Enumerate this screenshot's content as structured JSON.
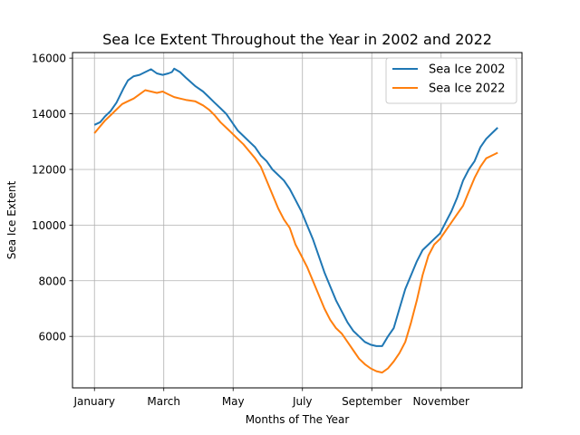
{
  "chart_data": {
    "type": "line",
    "title": "Sea Ice Extent Throughout the Year in 2002 and 2022",
    "xlabel": "Months of The Year",
    "ylabel": "Sea Ice Extent",
    "x_ticks": [
      {
        "label": "January",
        "day": 1
      },
      {
        "label": "March",
        "day": 61
      },
      {
        "label": "May",
        "day": 121
      },
      {
        "label": "July",
        "day": 181
      },
      {
        "label": "September",
        "day": 241
      },
      {
        "label": "November",
        "day": 301
      }
    ],
    "xlim": [
      -18,
      371
    ],
    "ylim": [
      4150,
      16200
    ],
    "y_ticks": [
      6000,
      8000,
      10000,
      12000,
      14000,
      16000
    ],
    "grid": true,
    "legend_position": "top-right",
    "series": [
      {
        "name": "Sea Ice 2002",
        "color": "#1f77b4",
        "points": [
          [
            1,
            13600
          ],
          [
            6,
            13700
          ],
          [
            10,
            13900
          ],
          [
            15,
            14100
          ],
          [
            20,
            14400
          ],
          [
            26,
            14900
          ],
          [
            30,
            15200
          ],
          [
            35,
            15350
          ],
          [
            40,
            15400
          ],
          [
            45,
            15500
          ],
          [
            50,
            15600
          ],
          [
            55,
            15450
          ],
          [
            60,
            15400
          ],
          [
            65,
            15450
          ],
          [
            68,
            15500
          ],
          [
            70,
            15620
          ],
          [
            75,
            15500
          ],
          [
            80,
            15300
          ],
          [
            88,
            15000
          ],
          [
            95,
            14800
          ],
          [
            100,
            14600
          ],
          [
            105,
            14400
          ],
          [
            110,
            14200
          ],
          [
            115,
            14000
          ],
          [
            120,
            13700
          ],
          [
            125,
            13400
          ],
          [
            130,
            13200
          ],
          [
            135,
            13000
          ],
          [
            140,
            12800
          ],
          [
            145,
            12500
          ],
          [
            150,
            12300
          ],
          [
            155,
            12000
          ],
          [
            160,
            11800
          ],
          [
            165,
            11600
          ],
          [
            170,
            11300
          ],
          [
            175,
            10900
          ],
          [
            180,
            10500
          ],
          [
            185,
            10000
          ],
          [
            190,
            9500
          ],
          [
            195,
            8900
          ],
          [
            200,
            8300
          ],
          [
            205,
            7800
          ],
          [
            210,
            7300
          ],
          [
            215,
            6900
          ],
          [
            220,
            6500
          ],
          [
            225,
            6200
          ],
          [
            230,
            6000
          ],
          [
            235,
            5800
          ],
          [
            240,
            5700
          ],
          [
            245,
            5650
          ],
          [
            250,
            5650
          ],
          [
            255,
            6000
          ],
          [
            260,
            6300
          ],
          [
            265,
            7000
          ],
          [
            270,
            7700
          ],
          [
            275,
            8200
          ],
          [
            280,
            8700
          ],
          [
            285,
            9100
          ],
          [
            290,
            9300
          ],
          [
            295,
            9500
          ],
          [
            300,
            9700
          ],
          [
            305,
            10100
          ],
          [
            310,
            10500
          ],
          [
            315,
            11000
          ],
          [
            320,
            11600
          ],
          [
            325,
            12000
          ],
          [
            330,
            12300
          ],
          [
            335,
            12800
          ],
          [
            340,
            13100
          ],
          [
            345,
            13300
          ],
          [
            350,
            13500
          ]
        ]
      },
      {
        "name": "Sea Ice 2022",
        "color": "#ff7f0e",
        "points": [
          [
            1,
            13300
          ],
          [
            5,
            13500
          ],
          [
            10,
            13750
          ],
          [
            15,
            13950
          ],
          [
            20,
            14150
          ],
          [
            25,
            14350
          ],
          [
            30,
            14450
          ],
          [
            35,
            14550
          ],
          [
            40,
            14700
          ],
          [
            45,
            14850
          ],
          [
            50,
            14800
          ],
          [
            55,
            14750
          ],
          [
            60,
            14800
          ],
          [
            65,
            14700
          ],
          [
            70,
            14600
          ],
          [
            75,
            14550
          ],
          [
            80,
            14500
          ],
          [
            88,
            14450
          ],
          [
            95,
            14300
          ],
          [
            100,
            14150
          ],
          [
            105,
            13950
          ],
          [
            110,
            13700
          ],
          [
            115,
            13500
          ],
          [
            120,
            13300
          ],
          [
            125,
            13100
          ],
          [
            130,
            12900
          ],
          [
            135,
            12650
          ],
          [
            140,
            12400
          ],
          [
            145,
            12100
          ],
          [
            150,
            11600
          ],
          [
            155,
            11100
          ],
          [
            160,
            10600
          ],
          [
            165,
            10200
          ],
          [
            170,
            9900
          ],
          [
            175,
            9300
          ],
          [
            180,
            8900
          ],
          [
            185,
            8500
          ],
          [
            190,
            8000
          ],
          [
            195,
            7500
          ],
          [
            200,
            7000
          ],
          [
            205,
            6600
          ],
          [
            210,
            6300
          ],
          [
            215,
            6100
          ],
          [
            220,
            5800
          ],
          [
            225,
            5500
          ],
          [
            230,
            5200
          ],
          [
            235,
            5000
          ],
          [
            240,
            4850
          ],
          [
            245,
            4750
          ],
          [
            250,
            4700
          ],
          [
            255,
            4850
          ],
          [
            260,
            5100
          ],
          [
            265,
            5400
          ],
          [
            270,
            5800
          ],
          [
            275,
            6500
          ],
          [
            280,
            7300
          ],
          [
            285,
            8200
          ],
          [
            290,
            8900
          ],
          [
            295,
            9300
          ],
          [
            300,
            9500
          ],
          [
            305,
            9800
          ],
          [
            310,
            10100
          ],
          [
            315,
            10400
          ],
          [
            320,
            10700
          ],
          [
            325,
            11200
          ],
          [
            330,
            11700
          ],
          [
            335,
            12100
          ],
          [
            340,
            12400
          ],
          [
            345,
            12500
          ],
          [
            350,
            12600
          ]
        ]
      }
    ]
  }
}
